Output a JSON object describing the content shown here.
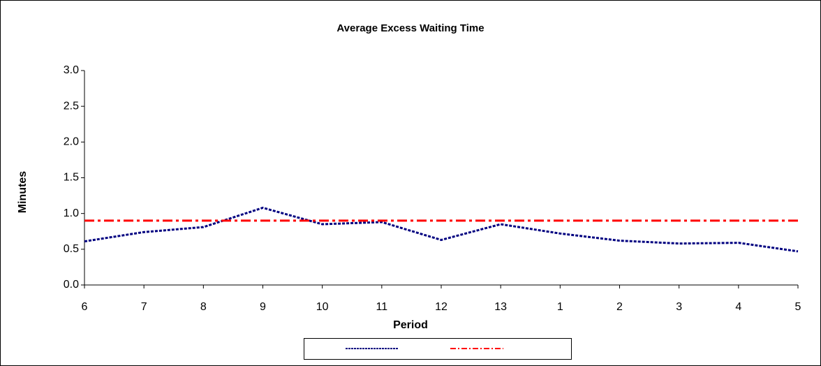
{
  "chart_data": {
    "type": "line",
    "title": "Average Excess Waiting Time",
    "x_label": "Period",
    "y_label": "Minutes",
    "categories": [
      "6",
      "7",
      "8",
      "9",
      "10",
      "11",
      "12",
      "13",
      "1",
      "2",
      "3",
      "4",
      "5"
    ],
    "series": [
      {
        "color": "#000080",
        "values": [
          0.61,
          0.74,
          0.81,
          1.08,
          0.85,
          0.88,
          0.63,
          0.85,
          0.72,
          0.62,
          0.58,
          0.59,
          0.47
        ]
      },
      {
        "color": "#ff0000",
        "values": [
          0.9,
          0.9,
          0.9,
          0.9,
          0.9,
          0.9,
          0.9,
          0.9,
          0.9,
          0.9,
          0.9,
          0.9,
          0.9
        ]
      }
    ],
    "ylim": [
      0,
      3
    ],
    "yticks": [
      {
        "value": 0,
        "label": "0.0"
      },
      0.5,
      {
        "value": 1,
        "label": "1.0"
      },
      1.5,
      {
        "value": 2,
        "label": "2.0"
      },
      2.5,
      {
        "value": 3,
        "label": "3.0"
      }
    ],
    "legend": "bottom"
  }
}
